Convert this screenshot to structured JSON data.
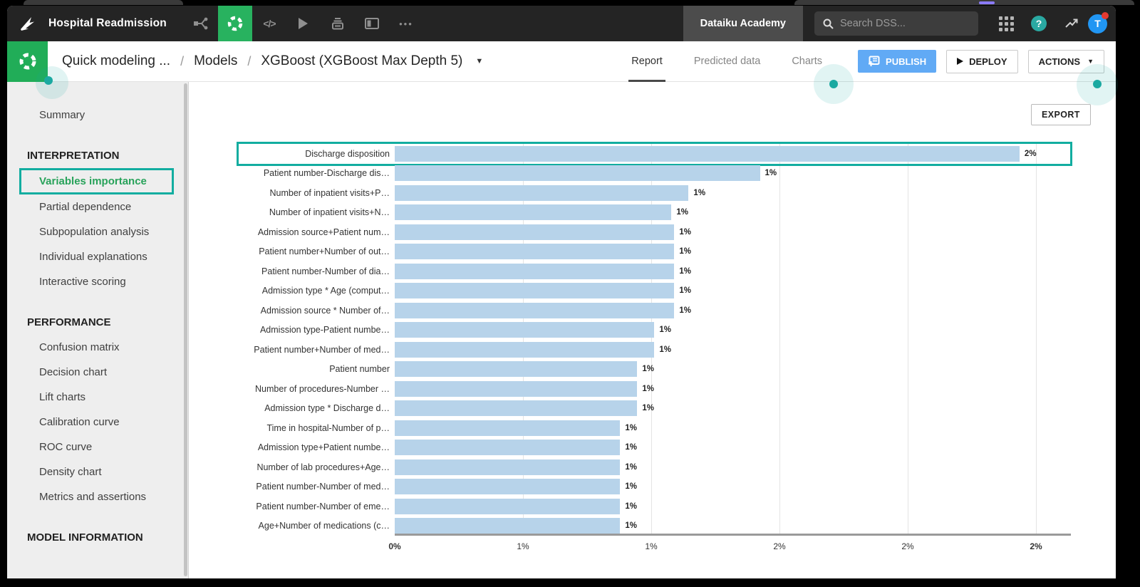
{
  "topbar": {
    "project_title": "Hospital Readmission",
    "nav_icons": [
      "flow-icon",
      "lab-icon",
      "code-icon",
      "play-icon",
      "jobs-icon",
      "dashboard-icon",
      "more-icon"
    ],
    "active_icon": "lab-icon",
    "academy_label": "Dataiku Academy",
    "search_placeholder": "Search DSS...",
    "right_icons": [
      "apps-grid-icon",
      "help-icon",
      "trend-icon"
    ],
    "avatar_initial": "T"
  },
  "header": {
    "breadcrumb": [
      "Quick modeling ...",
      "Models",
      "XGBoost (XGBoost Max Depth 5)"
    ],
    "tabs": [
      {
        "label": "Report",
        "active": true
      },
      {
        "label": "Predicted data",
        "active": false
      },
      {
        "label": "Charts",
        "active": false
      }
    ],
    "publish_label": "PUBLISH",
    "deploy_label": "DEPLOY",
    "actions_label": "ACTIONS"
  },
  "sidebar": {
    "items": [
      {
        "label": "Summary",
        "type": "item"
      },
      {
        "label": "INTERPRETATION",
        "type": "section"
      },
      {
        "label": "Variables importance",
        "type": "item",
        "active": true
      },
      {
        "label": "Partial dependence",
        "type": "item"
      },
      {
        "label": "Subpopulation analysis",
        "type": "item"
      },
      {
        "label": "Individual explanations",
        "type": "item"
      },
      {
        "label": "Interactive scoring",
        "type": "item"
      },
      {
        "label": "PERFORMANCE",
        "type": "section"
      },
      {
        "label": "Confusion matrix",
        "type": "item"
      },
      {
        "label": "Decision chart",
        "type": "item"
      },
      {
        "label": "Lift charts",
        "type": "item"
      },
      {
        "label": "Calibration curve",
        "type": "item"
      },
      {
        "label": "ROC curve",
        "type": "item"
      },
      {
        "label": "Density chart",
        "type": "item"
      },
      {
        "label": "Metrics and assertions",
        "type": "item"
      },
      {
        "label": "MODEL INFORMATION",
        "type": "section"
      }
    ]
  },
  "main": {
    "export_label": "EXPORT"
  },
  "chart_data": {
    "type": "bar",
    "orientation": "horizontal",
    "title": "",
    "xlabel": "",
    "ylabel": "",
    "categories": [
      "Discharge disposition",
      "Patient number-Discharge dis…",
      "Number of inpatient visits+P…",
      "Number of inpatient visits+N…",
      "Admission source+Patient num…",
      "Patient number+Number of out…",
      "Patient number-Number of dia…",
      "Admission type * Age (comput…",
      "Admission source * Number of…",
      "Admission type-Patient numbe…",
      "Patient number+Number of med…",
      "Patient number",
      "Number of procedures-Number …",
      "Admission type * Discharge d…",
      "Time in hospital-Number of p…",
      "Admission type+Patient numbe…",
      "Number of lab procedures+Age…",
      "Patient number-Number of med…",
      "Patient number-Number of eme…",
      "Age+Number of medications (c…"
    ],
    "values": [
      2.19,
      1.28,
      1.03,
      0.97,
      0.98,
      0.98,
      0.98,
      0.98,
      0.98,
      0.91,
      0.91,
      0.85,
      0.85,
      0.85,
      0.79,
      0.79,
      0.79,
      0.79,
      0.79,
      0.79
    ],
    "value_labels": [
      "2%",
      "1%",
      "1%",
      "1%",
      "1%",
      "1%",
      "1%",
      "1%",
      "1%",
      "1%",
      "1%",
      "1%",
      "1%",
      "1%",
      "1%",
      "1%",
      "1%",
      "1%",
      "1%",
      "1%"
    ],
    "x_tick_labels": [
      "0%",
      "1%",
      "1%",
      "2%",
      "2%",
      "2%"
    ],
    "axis_max_pct": 2.37,
    "grid": true,
    "legend": "none",
    "bar_color": "#b7d3ea",
    "highlighted_row_index": 0
  },
  "colors": {
    "navbar_bg": "#242424",
    "nav_active_green": "#28b25f",
    "lab_tile_green": "#21ad58",
    "annotation_teal": "#12ada0",
    "active_item_green": "#28a25a",
    "publish_blue": "#61aaf5",
    "bar_blue": "#b7d3ea",
    "sidebar_bg": "#eeeeee",
    "avatar_blue": "#2196f3",
    "notification_red": "#e53a30"
  }
}
